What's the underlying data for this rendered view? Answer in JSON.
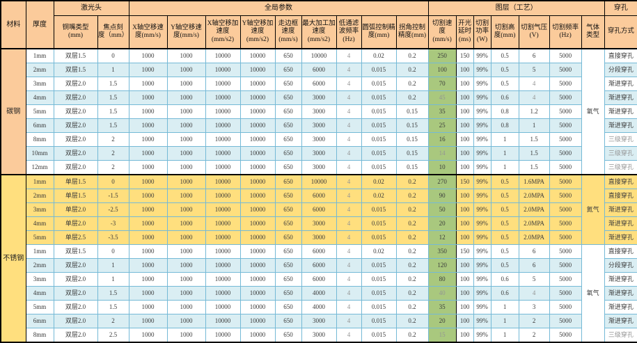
{
  "colors": {
    "header_bg": "#FBCB9B",
    "row_alt_bg": "#DAEEF3",
    "nitrogen_section_bg": "#FFDF7E",
    "cut_speed_bg": "#A9C87E",
    "grid_line": "#74B9D6",
    "muted_text": "#949494"
  },
  "header": {
    "corner": [
      "材料",
      "厚度"
    ],
    "groups": [
      "激光头",
      "全局参数",
      "图层（工艺）",
      "穿孔"
    ],
    "columns": [
      "铜嘴类型\n(mm)",
      "焦点刻\n度（mm）",
      "X轴空移速\n度(mm/s)",
      "Y轴空移速\n度(mm/s)",
      "X轴空移加\n速度\n(mm/s2)",
      "Y轴空移加\n速度\n(mm/s2)",
      "走边框\n速度\n(mm/s)",
      "最大加工加\n速度\n(mm/s2)",
      "低通滤\n波频率\n(Hz)",
      "圆弧控制精\n度(mm)",
      "拐角控制\n精度(mm)",
      "切割速\n度\n(mm/s)",
      "开光\n延时\n(ms)",
      "切割\n功率\n(W)",
      "切割高\n度(mm)",
      "切割气压\n(V)",
      "切割频率\n(Hz)",
      "气体\n类型",
      "穿孔方式"
    ]
  },
  "muted_values": [
    "4",
    "45",
    "14",
    "40",
    "15",
    "三级穿孔"
  ],
  "sections": [
    {
      "material": "碳钢",
      "blocks": [
        {
          "gas": "氧气",
          "theme": "stripe",
          "rows": [
            [
              "1mm",
              "双层1.5",
              "0",
              "1000",
              "1000",
              "10000",
              "10000",
              "650",
              "10000",
              "4",
              "0.02",
              "0.2",
              "250",
              "150",
              "99%",
              "0.5",
              "6",
              "5000",
              "直接穿孔"
            ],
            [
              "2mm",
              "双层1.5",
              "1",
              "1000",
              "1000",
              "10000",
              "10000",
              "650",
              "6000",
              "4",
              "0.015",
              "0.2",
              "100",
              "100",
              "99%",
              "0.5",
              "5",
              "5000",
              "分段穿孔"
            ],
            [
              "3mm",
              "双层2.0",
              "1.5",
              "1000",
              "1000",
              "10000",
              "10000",
              "650",
              "6000",
              "4",
              "0.015",
              "0.2",
              "70",
              "100",
              "99%",
              "0.5",
              "4",
              "5000",
              "渐进穿孔"
            ],
            [
              "4mm",
              "双层2.0",
              "1.5",
              "1000",
              "1000",
              "10000",
              "10000",
              "650",
              "3000",
              "4",
              "0.015",
              "0.2",
              "45",
              "100",
              "99%",
              "0.6",
              "4",
              "5000",
              "渐进穿孔"
            ],
            [
              "5mm",
              "双层2.0",
              "1.5",
              "1000",
              "1000",
              "10000",
              "10000",
              "650",
              "3000",
              "4",
              "0.015",
              "0.15",
              "35",
              "100",
              "99%",
              "0.8",
              "1.2",
              "5000",
              "渐进穿孔"
            ],
            [
              "6mm",
              "双层2.0",
              "1.5",
              "1000",
              "1000",
              "10000",
              "10000",
              "650",
              "3000",
              "4",
              "0.015",
              "0.15",
              "25",
              "100",
              "99%",
              "0.8",
              "1",
              "5000",
              "渐进穿孔"
            ],
            [
              "8mm",
              "双层2.0",
              "2",
              "1000",
              "1000",
              "10000",
              "10000",
              "650",
              "3000",
              "4",
              "0.015",
              "0.15",
              "16",
              "100",
              "99%",
              "1",
              "1.5",
              "5000",
              "三级穿孔"
            ],
            [
              "10mm",
              "双层2.0",
              "2",
              "1000",
              "1000",
              "10000",
              "10000",
              "650",
              "3000",
              "4",
              "0.015",
              "0.15",
              "14",
              "100",
              "99%",
              "1",
              "1.5",
              "5000",
              "三级穿孔"
            ],
            [
              "12mm",
              "双层2.0",
              "2",
              "1000",
              "1000",
              "10000",
              "10000",
              "650",
              "3000",
              "4",
              "0.015",
              "0.15",
              "10",
              "100",
              "99%",
              "1",
              "1.5",
              "5000",
              "三级穿孔"
            ]
          ]
        }
      ]
    },
    {
      "material": "不锈钢",
      "blocks": [
        {
          "gas": "氮气",
          "theme": "yellow",
          "rows": [
            [
              "1mm",
              "单层1.5",
              "0",
              "1000",
              "1000",
              "10000",
              "10000",
              "650",
              "10000",
              "4",
              "0.02",
              "0.2",
              "270",
              "150",
              "99%",
              "0.5",
              "1.6MPA",
              "5000",
              "直接穿孔"
            ],
            [
              "2mm",
              "单层1.5",
              "-1.5",
              "1000",
              "1000",
              "10000",
              "10000",
              "650",
              "6000",
              "4",
              "0.02",
              "0.2",
              "90",
              "100",
              "99%",
              "0.5",
              "2.0MPA",
              "5000",
              "直接穿孔"
            ],
            [
              "3mm",
              "单层2.0",
              "-2.5",
              "1000",
              "1000",
              "10000",
              "10000",
              "650",
              "6000",
              "4",
              "0.015",
              "0.2",
              "50",
              "100",
              "99%",
              "0.5",
              "2.0MPA",
              "5000",
              "渐进穿孔"
            ],
            [
              "4mm",
              "单层2.0",
              "-3",
              "1000",
              "1000",
              "10000",
              "10000",
              "650",
              "3000",
              "4",
              "0.015",
              "0.2",
              "20",
              "100",
              "99%",
              "0.5",
              "2.0MPA",
              "5000",
              "渐进穿孔"
            ],
            [
              "5mm",
              "单层2.5",
              "-3.5",
              "1000",
              "1000",
              "10000",
              "10000",
              "650",
              "3000",
              "4",
              "0.015",
              "0.2",
              "12",
              "100",
              "99%",
              "0.5",
              "2.0MPA",
              "5000",
              "渐进穿孔"
            ]
          ]
        },
        {
          "gas": "氧气",
          "theme": "stripe",
          "rows": [
            [
              "1mm",
              "双层1.5",
              "0",
              "1000",
              "1000",
              "10000",
              "10000",
              "650",
              "6000",
              "4",
              "0.02",
              "0.2",
              "350",
              "150",
              "99%",
              "0.5",
              "6",
              "5000",
              "直接穿孔"
            ],
            [
              "2mm",
              "双层2.0",
              "1",
              "1000",
              "1000",
              "10000",
              "10000",
              "650",
              "6000",
              "4",
              "0.015",
              "0.2",
              "120",
              "100",
              "99%",
              "0.5",
              "6",
              "5000",
              "分段穿孔"
            ],
            [
              "3mm",
              "双层2.0",
              "1",
              "1000",
              "1000",
              "10000",
              "10000",
              "650",
              "6000",
              "4",
              "0.015",
              "0.2",
              "80",
              "100",
              "99%",
              "0.6",
              "5",
              "5000",
              "渐进穿孔"
            ],
            [
              "4mm",
              "双层2.0",
              "1.5",
              "1000",
              "1000",
              "10000",
              "10000",
              "650",
              "4000",
              "4",
              "0.015",
              "0.2",
              "40",
              "100",
              "99%",
              "0.6",
              "4",
              "5000",
              "渐进穿孔"
            ],
            [
              "5mm",
              "双层2.0",
              "1.5",
              "1000",
              "1000",
              "10000",
              "10000",
              "650",
              "4000",
              "4",
              "0.015",
              "0.2",
              "35",
              "100",
              "99%",
              "1",
              "3",
              "5000",
              "渐进穿孔"
            ],
            [
              "6mm",
              "双层2.0",
              "2",
              "1000",
              "1000",
              "10000",
              "10000",
              "650",
              "3000",
              "4",
              "0.015",
              "0.2",
              "20",
              "100",
              "99%",
              "1",
              "2",
              "5000",
              "渐进穿孔"
            ],
            [
              "8mm",
              "双层2.0",
              "2.5",
              "1000",
              "1000",
              "10000",
              "10000",
              "650",
              "3000",
              "4",
              "0.015",
              "0.2",
              "15",
              "100",
              "99%",
              "1",
              "2",
              "5000",
              "三级穿孔"
            ]
          ]
        }
      ]
    }
  ]
}
